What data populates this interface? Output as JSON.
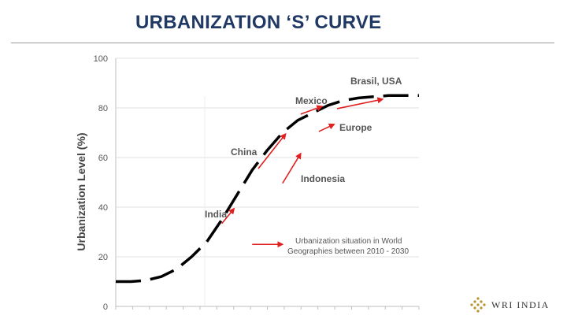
{
  "slide": {
    "title": "URBANIZATION ‘S’ CURVE"
  },
  "chart_data": {
    "type": "line",
    "title": "",
    "xlabel": "",
    "ylabel": "Urbanization Level (%)",
    "ylim": [
      0,
      100
    ],
    "xlim": [
      0,
      100
    ],
    "yticks": [
      0,
      20,
      40,
      60,
      80,
      100
    ],
    "grid": "horizontal",
    "series": [
      {
        "name": "S curve",
        "style": "dashed",
        "color": "#000000",
        "x": [
          0,
          5,
          10,
          15,
          20,
          25,
          30,
          35,
          40,
          45,
          50,
          55,
          60,
          65,
          70,
          75,
          80,
          85,
          90,
          95,
          100
        ],
        "values": [
          10,
          10,
          10.5,
          12,
          15,
          20,
          26,
          35,
          45,
          55,
          63,
          70,
          75,
          78,
          81,
          83,
          84,
          84.5,
          85,
          85,
          85
        ]
      }
    ],
    "annotations": [
      {
        "label": "Brasil, USA",
        "arrow": {
          "from": [
            73,
            79.7
          ],
          "to": [
            88,
            83.5
          ]
        }
      },
      {
        "label": "Mexico",
        "arrow": {
          "from": [
            61,
            77.5
          ],
          "to": [
            68,
            80.6
          ]
        }
      },
      {
        "label": "Europe",
        "arrow": {
          "from": [
            67,
            70.5
          ],
          "to": [
            72,
            73.4
          ]
        }
      },
      {
        "label": "China",
        "arrow": {
          "from": [
            47,
            55.5
          ],
          "to": [
            56,
            69.5
          ]
        }
      },
      {
        "label": "Indonesia",
        "arrow": {
          "from": [
            55,
            49.6
          ],
          "to": [
            61,
            61.6
          ]
        }
      },
      {
        "label": "India",
        "arrow": {
          "from": [
            35,
            33.4
          ],
          "to": [
            39,
            39.4
          ]
        }
      },
      {
        "label": "Urbanization situation in World\nGeographies between 2010 - 2030",
        "arrow": {
          "from": [
            45,
            25
          ],
          "to": [
            55,
            25
          ]
        }
      }
    ]
  },
  "logo": {
    "text": "WRI INDIA"
  },
  "colors": {
    "title": "#1f3864",
    "arrow": "#e02020",
    "line": "#000000",
    "grid": "#e2e2e2"
  }
}
